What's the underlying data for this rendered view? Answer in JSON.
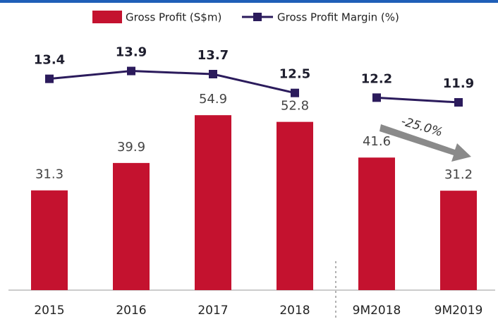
{
  "chart_data": {
    "type": "bar_line",
    "categories": [
      "2015",
      "2016",
      "2017",
      "2018",
      "9M2018",
      "9M2019"
    ],
    "series": [
      {
        "name": "Gross Profit (S$m)",
        "type": "bar",
        "color": "#c4122f",
        "values": [
          31.3,
          39.9,
          54.9,
          52.8,
          41.6,
          31.2
        ]
      },
      {
        "name": "Gross Profit Margin (%)",
        "type": "line",
        "axis": "y2",
        "color": "#2b1b5c",
        "values": [
          13.4,
          13.9,
          13.7,
          12.5,
          12.2,
          11.9
        ]
      }
    ],
    "ylim": [
      0,
      70
    ],
    "y2lim": [
      11,
      14.6
    ],
    "break_after": 3,
    "annotation": "-25.0%",
    "legend": "top"
  }
}
